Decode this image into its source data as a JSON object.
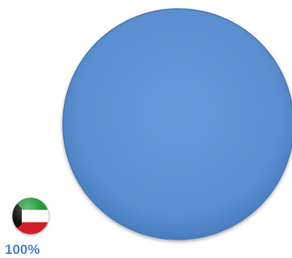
{
  "chart_data": {
    "type": "pie",
    "slices": [
      {
        "label": "100%",
        "value": 100,
        "country_flag": "kuwait-flag-icon",
        "color": "#5b8fd0"
      }
    ],
    "title": "",
    "legend": "bottom-left"
  },
  "colors": {
    "slice_fill": "#5b8fd0",
    "slice_edge": "#4a78b4",
    "label_color": "#4a86cf",
    "flag_green": "#1f9a3a",
    "flag_red": "#d21f2a",
    "flag_black": "#111111",
    "flag_white": "#ffffff"
  }
}
